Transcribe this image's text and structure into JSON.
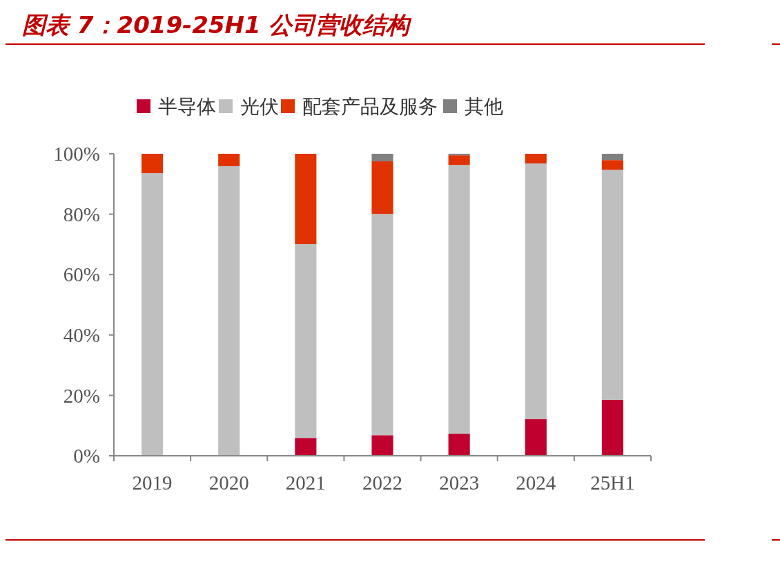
{
  "chart_data": {
    "type": "bar",
    "title": "图表 7：2019-25H1 公司营收结构",
    "stacked": true,
    "categories": [
      "2019",
      "2020",
      "2021",
      "2022",
      "2023",
      "2024",
      "25H1"
    ],
    "series": [
      {
        "name": "半导体",
        "color": "#c0002f",
        "values": [
          0,
          0,
          5.9,
          6.8,
          7.3,
          12.1,
          18.5
        ]
      },
      {
        "name": "光伏",
        "color": "#bfbfbf",
        "values": [
          93.6,
          95.9,
          64.2,
          73.3,
          89.0,
          84.7,
          76.2
        ]
      },
      {
        "name": "配套产品及服务",
        "color": "#e03300",
        "values": [
          6.4,
          4.1,
          29.9,
          17.4,
          3.2,
          3.2,
          3.2
        ]
      },
      {
        "name": "其他",
        "color": "#808080",
        "values": [
          0,
          0,
          0,
          2.5,
          0.5,
          0,
          2.1
        ]
      }
    ],
    "ylim": [
      0,
      100
    ],
    "yticks": [
      {
        "value": 0,
        "label": "0%"
      },
      {
        "value": 20,
        "label": "20%"
      },
      {
        "value": 40,
        "label": "40%"
      },
      {
        "value": 60,
        "label": "60%"
      },
      {
        "value": 80,
        "label": "80%"
      },
      {
        "value": 100,
        "label": "100%"
      }
    ],
    "grid": false,
    "legend": "top"
  }
}
